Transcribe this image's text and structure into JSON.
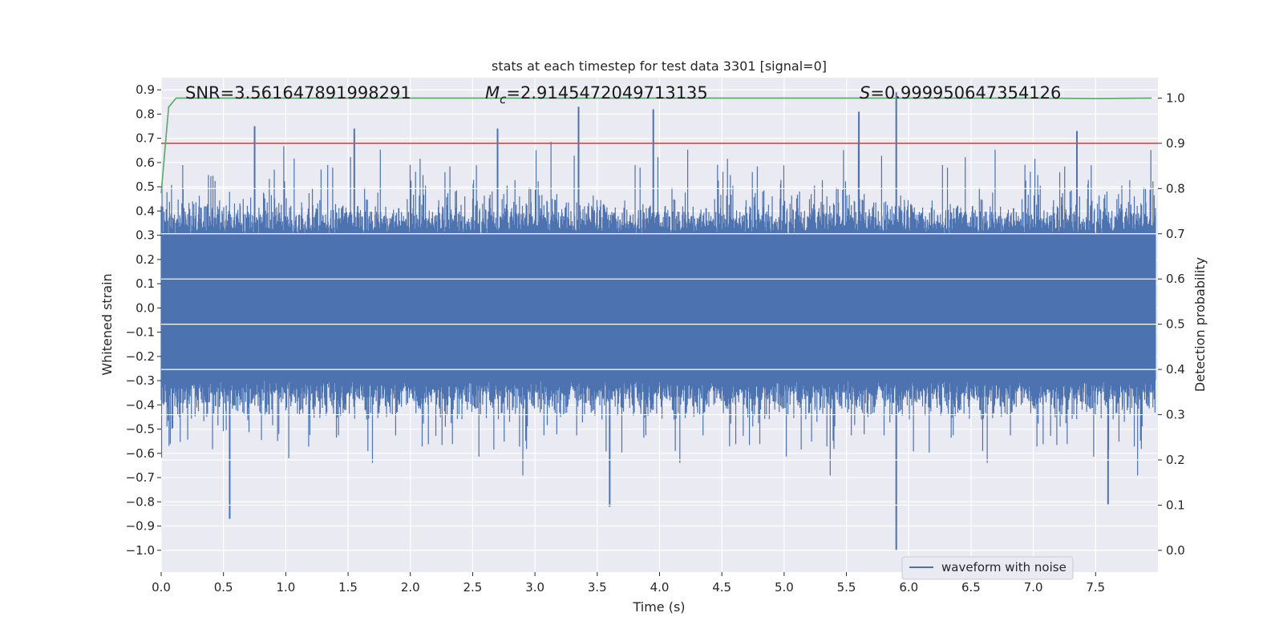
{
  "chart_data": {
    "type": "line",
    "title": "stats at each timestep for test data 3301 [signal=0]",
    "xlabel": "Time (s)",
    "ylabel": "Whitened strain",
    "y2label": "Detection probability",
    "xlim": [
      0.0,
      8.0
    ],
    "ylim": [
      -1.09,
      0.95
    ],
    "y2lim": [
      -0.048,
      1.045
    ],
    "x_ticks": [
      0.0,
      0.5,
      1.0,
      1.5,
      2.0,
      2.5,
      3.0,
      3.5,
      4.0,
      4.5,
      5.0,
      5.5,
      6.0,
      6.5,
      7.0,
      7.5
    ],
    "x_tick_labels": [
      "0.0",
      "0.5",
      "1.0",
      "1.5",
      "2.0",
      "2.5",
      "3.0",
      "3.5",
      "4.0",
      "4.5",
      "5.0",
      "5.5",
      "6.0",
      "6.5",
      "7.0",
      "7.5"
    ],
    "y_ticks": [
      0.9,
      0.8,
      0.7,
      0.6,
      0.5,
      0.4,
      0.3,
      0.2,
      0.1,
      0.0,
      -0.1,
      -0.2,
      -0.3,
      -0.4,
      -0.5,
      -0.6,
      -0.7,
      -0.8,
      -0.9,
      -1.0
    ],
    "y_tick_labels": [
      "0.9",
      "0.8",
      "0.7",
      "0.6",
      "0.5",
      "0.4",
      "0.3",
      "0.2",
      "0.1",
      "0.0",
      "−0.1",
      "−0.2",
      "−0.3",
      "−0.4",
      "−0.5",
      "−0.6",
      "−0.7",
      "−0.8",
      "−0.9",
      "−1.0"
    ],
    "y2_ticks": [
      1.0,
      0.9,
      0.8,
      0.7,
      0.6,
      0.5,
      0.4,
      0.3,
      0.2,
      0.1,
      0.0
    ],
    "y2_tick_labels": [
      "1.0",
      "0.9",
      "0.8",
      "0.7",
      "0.6",
      "0.5",
      "0.4",
      "0.3",
      "0.2",
      "0.1",
      "0.0"
    ],
    "grid": true,
    "annotations": {
      "snr": "SNR=3.561647891998291",
      "mc_symbol": "M",
      "mc_sub": "c",
      "mc_value": "=2.9145472049713135",
      "s_symbol": "S",
      "s_value": "=0.999950647354126"
    },
    "series": [
      {
        "name": "waveform with noise",
        "axis": "left",
        "color": "#4c72b0",
        "description": "dense noisy whitened strain, envelope approx ±0.5 with spikes",
        "peaks": [
          {
            "x": 0.55,
            "y": -0.87
          },
          {
            "x": 0.75,
            "y": 0.75
          },
          {
            "x": 1.55,
            "y": 0.74
          },
          {
            "x": 2.7,
            "y": 0.74
          },
          {
            "x": 3.35,
            "y": 0.83
          },
          {
            "x": 3.6,
            "y": -0.82
          },
          {
            "x": 3.95,
            "y": 0.82
          },
          {
            "x": 5.6,
            "y": 0.81
          },
          {
            "x": 5.9,
            "y": 0.89
          },
          {
            "x": 5.9,
            "y": -1.0
          },
          {
            "x": 7.35,
            "y": 0.73
          },
          {
            "x": 7.6,
            "y": -0.81
          }
        ]
      },
      {
        "name": "detection probability",
        "axis": "right",
        "color": "#55a868",
        "x": [
          0.0,
          0.06,
          0.12,
          0.2,
          1.0,
          2.0,
          3.0,
          4.0,
          5.0,
          6.0,
          7.0,
          7.5,
          7.95
        ],
        "y": [
          0.79,
          0.98,
          1.0,
          1.0,
          1.0,
          1.0,
          1.0,
          1.0,
          1.0,
          1.0,
          1.0,
          0.999,
          1.0
        ]
      },
      {
        "name": "threshold",
        "axis": "right",
        "color": "#c44e52",
        "x": [
          0.0,
          8.0
        ],
        "y": [
          0.9,
          0.9
        ]
      }
    ],
    "legend": {
      "entries": [
        "waveform with noise"
      ],
      "location": "lower-right"
    }
  }
}
